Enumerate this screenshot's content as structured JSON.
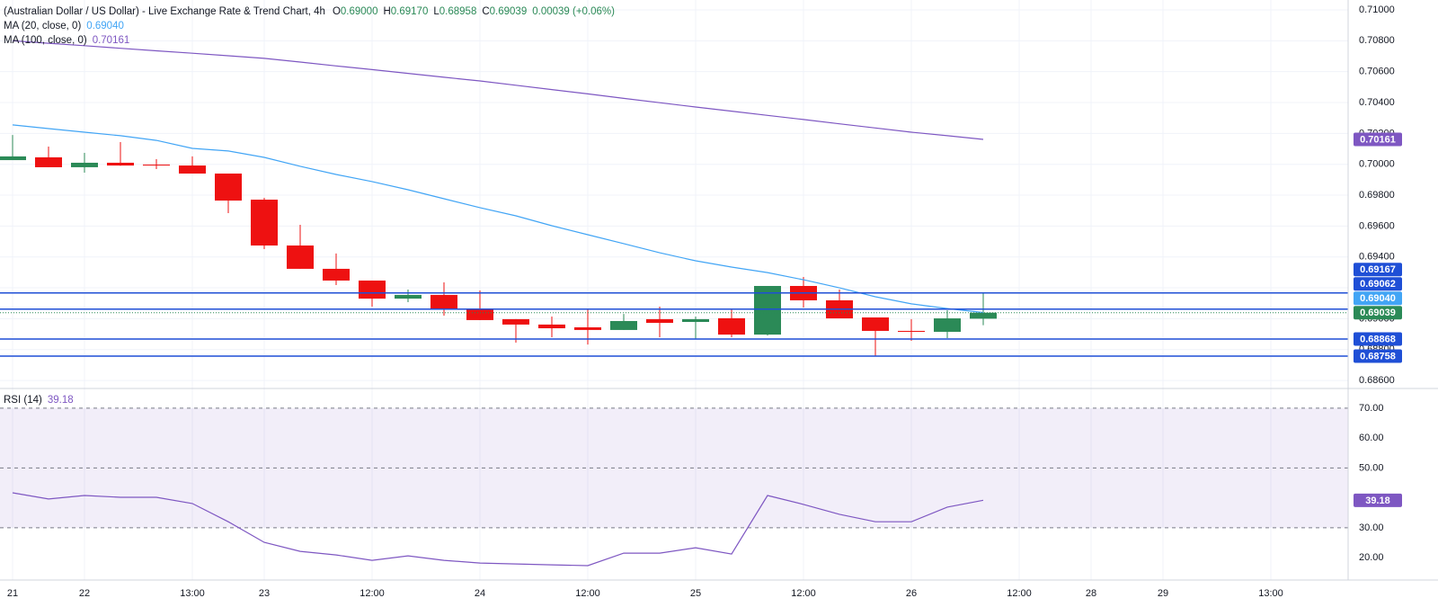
{
  "chart_data": [
    {
      "type": "candlestick",
      "header": {
        "title": "(Australian Dollar / US Dollar) - Live Exchange Rate & Trend Chart, 4h",
        "ohlc": [
          {
            "key": "O",
            "label": "0.69000"
          },
          {
            "key": "H",
            "label": "0.69170"
          },
          {
            "key": "L",
            "label": "0.68958"
          },
          {
            "key": "C",
            "label": "0.69039"
          }
        ],
        "change": "0.00039 (+0.06%)"
      },
      "x": [
        0,
        1,
        2,
        3,
        4,
        5,
        6,
        7,
        8,
        9,
        10,
        11,
        12,
        13,
        14,
        15,
        16,
        17,
        18,
        19,
        20,
        21,
        22,
        23,
        24,
        25,
        26,
        27
      ],
      "open": [
        0.70027,
        0.70045,
        0.69981,
        0.7001,
        0.69998,
        0.69992,
        0.6994,
        0.69771,
        0.69474,
        0.69323,
        0.69247,
        0.6913,
        0.69154,
        0.69061,
        0.68997,
        0.68962,
        0.68944,
        0.68927,
        0.68997,
        0.68979,
        0.69003,
        0.68897,
        0.69212,
        0.69119,
        0.69008,
        0.68921,
        0.68915,
        0.69
      ],
      "high": [
        0.7019,
        0.70115,
        0.70074,
        0.70144,
        0.70033,
        0.70051,
        0.6994,
        0.69783,
        0.69608,
        0.69422,
        0.69247,
        0.69189,
        0.69235,
        0.69183,
        0.68997,
        0.69014,
        0.69066,
        0.69031,
        0.69078,
        0.69014,
        0.69066,
        0.69212,
        0.6927,
        0.69189,
        0.69008,
        0.68997,
        0.69055,
        0.6917
      ],
      "low": [
        0.70027,
        0.69981,
        0.69946,
        0.6999,
        0.69969,
        0.6994,
        0.69684,
        0.69451,
        0.69323,
        0.69218,
        0.69078,
        0.69107,
        0.6902,
        0.68991,
        0.68845,
        0.6888,
        0.68833,
        0.68927,
        0.6888,
        0.68868,
        0.6888,
        0.68891,
        0.69072,
        0.69002,
        0.68758,
        0.68857,
        0.68874,
        0.68958
      ],
      "close": [
        0.70051,
        0.69981,
        0.7001,
        0.69992,
        0.69992,
        0.6994,
        0.69765,
        0.69474,
        0.69323,
        0.69247,
        0.6913,
        0.69154,
        0.69061,
        0.68991,
        0.68962,
        0.68938,
        0.68927,
        0.68985,
        0.68973,
        0.68997,
        0.68897,
        0.69212,
        0.69119,
        0.69002,
        0.68921,
        0.68915,
        0.69002,
        0.69039
      ],
      "up_color": "#2b8a57",
      "down_color": "#ee1111",
      "xlim": [
        -0.35,
        37.15
      ],
      "ylim": [
        0.68548,
        0.71064
      ],
      "yticks": [
        {
          "value": 0.686,
          "label": "0.68600"
        },
        {
          "value": 0.688,
          "label": "0.68800"
        },
        {
          "value": 0.69,
          "label": "0.69000"
        },
        {
          "value": 0.692,
          "label": "0.69200"
        },
        {
          "value": 0.694,
          "label": "0.69400"
        },
        {
          "value": 0.696,
          "label": "0.69600"
        },
        {
          "value": 0.698,
          "label": "0.69800"
        },
        {
          "value": 0.7,
          "label": "0.70000"
        },
        {
          "value": 0.702,
          "label": "0.70200"
        },
        {
          "value": 0.704,
          "label": "0.70400"
        },
        {
          "value": 0.706,
          "label": "0.70600"
        },
        {
          "value": 0.708,
          "label": "0.70800"
        },
        {
          "value": 0.71,
          "label": "0.71000"
        }
      ],
      "grid": true,
      "series": [
        {
          "name": "MA (20, close, 0)",
          "color": "#42a5f5",
          "value_label": "0.69040",
          "values": [
            0.70255,
            0.70231,
            0.70208,
            0.70185,
            0.70155,
            0.70103,
            0.70086,
            0.70045,
            0.69987,
            0.69934,
            0.69888,
            0.69835,
            0.69777,
            0.69719,
            0.69666,
            0.69602,
            0.69544,
            0.69486,
            0.69427,
            0.69375,
            0.69334,
            0.69299,
            0.69252,
            0.692,
            0.69142,
            0.69096,
            0.69066,
            0.6904
          ]
        },
        {
          "name": "MA (100, close, 0)",
          "color": "#7e57c2",
          "value_label": "0.70161",
          "values": [
            0.708,
            0.70784,
            0.70768,
            0.70751,
            0.70735,
            0.70719,
            0.70703,
            0.70686,
            0.70662,
            0.70637,
            0.70613,
            0.70589,
            0.70564,
            0.7054,
            0.70512,
            0.70484,
            0.70456,
            0.70427,
            0.70399,
            0.70371,
            0.70344,
            0.70317,
            0.7029,
            0.70262,
            0.70235,
            0.70208,
            0.70185,
            0.70161
          ]
        }
      ],
      "hlines": {
        "color": "#1f4fd6",
        "values": [
          0.69167,
          0.69062,
          0.68868,
          0.68758
        ],
        "value_labels": [
          "0.69167",
          "0.69062",
          "0.68868",
          "0.68758"
        ]
      },
      "last_price": {
        "value": 0.69039,
        "label": "0.69039",
        "color": "#2b8a57"
      }
    },
    {
      "type": "line",
      "x": [
        0,
        1,
        2,
        3,
        4,
        5,
        6,
        7,
        8,
        9,
        10,
        11,
        12,
        13,
        14,
        15,
        16,
        17,
        18,
        19,
        20,
        21,
        22,
        23,
        24,
        25,
        26,
        27
      ],
      "xlim": [
        -0.35,
        37.15
      ],
      "xticks": [
        {
          "value": 0,
          "label": "21"
        },
        {
          "value": 2,
          "label": "22"
        },
        {
          "value": 5,
          "label": "13:00"
        },
        {
          "value": 7,
          "label": "23"
        },
        {
          "value": 10,
          "label": "12:00"
        },
        {
          "value": 13,
          "label": "24"
        },
        {
          "value": 16,
          "label": "12:00"
        },
        {
          "value": 19,
          "label": "25"
        },
        {
          "value": 22,
          "label": "12:00"
        },
        {
          "value": 25,
          "label": "26"
        },
        {
          "value": 28,
          "label": "12:00"
        },
        {
          "value": 30,
          "label": "28"
        },
        {
          "value": 32,
          "label": "29"
        },
        {
          "value": 35,
          "label": "13:00"
        }
      ],
      "ylim": [
        12.5,
        76.6
      ],
      "yticks": [
        {
          "value": 20,
          "label": "20.00"
        },
        {
          "value": 30,
          "label": "30.00"
        },
        {
          "value": 40,
          "label": "40.00"
        },
        {
          "value": 50,
          "label": "50.00"
        },
        {
          "value": 60,
          "label": "60.00"
        },
        {
          "value": 70,
          "label": "70.00"
        }
      ],
      "band": [
        30,
        70
      ],
      "band_color": "#7e57c2",
      "levels": [
        70,
        50,
        30
      ],
      "series": [
        {
          "name": "RSI (14)",
          "color": "#7e57c2",
          "value_label": "39.18",
          "values": [
            41.7,
            39.6,
            40.8,
            40.2,
            40.2,
            38.1,
            32.0,
            25.1,
            22.1,
            20.9,
            19.1,
            20.6,
            19.1,
            18.2,
            17.9,
            17.6,
            17.3,
            21.5,
            21.5,
            23.3,
            21.2,
            40.8,
            37.8,
            34.5,
            32.0,
            32.0,
            36.9,
            39.18
          ]
        }
      ]
    }
  ]
}
